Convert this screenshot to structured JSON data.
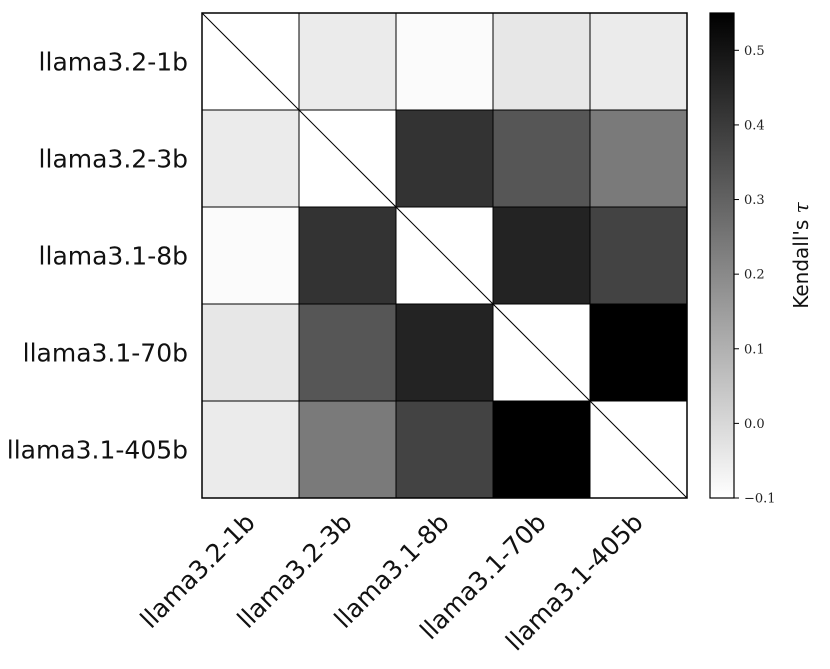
{
  "chart_data": {
    "type": "heatmap",
    "models": [
      "llama3.2-1b",
      "llama3.2-3b",
      "llama3.1-8b",
      "llama3.1-70b",
      "llama3.1-405b"
    ],
    "matrix": [
      [
        null,
        -0.05,
        -0.09,
        -0.04,
        -0.05
      ],
      [
        -0.05,
        null,
        0.42,
        0.33,
        0.24
      ],
      [
        -0.09,
        0.42,
        null,
        0.46,
        0.38
      ],
      [
        -0.04,
        0.33,
        0.46,
        null,
        0.55
      ],
      [
        -0.05,
        0.24,
        0.38,
        0.55,
        null
      ]
    ],
    "colorbar": {
      "label": "Kendall's",
      "label_symbol": "τ",
      "vmin": -0.1,
      "vmax": 0.55,
      "ticks": [
        -0.1,
        0.0,
        0.1,
        0.2,
        0.3,
        0.4,
        0.5
      ],
      "tick_labels": [
        "−0.1",
        "0.0",
        "0.1",
        "0.2",
        "0.3",
        "0.4",
        "0.5"
      ],
      "colormap": "Greys"
    },
    "diagonal": "masked with line"
  }
}
